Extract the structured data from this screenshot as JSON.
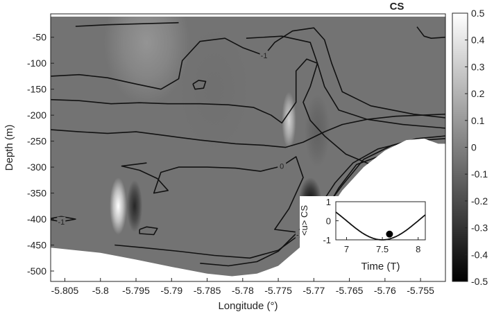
{
  "chart_data": {
    "type": "heatmap",
    "title": "CS",
    "xlabel": "Longitude (°)",
    "ylabel": "Depth (m)",
    "xlim": [
      -5.807,
      -5.7515
    ],
    "ylim": [
      -520,
      -5
    ],
    "x_ticks": [
      "-5.805",
      "-5.8",
      "-5.795",
      "-5.79",
      "-5.785",
      "-5.78",
      "-5.775",
      "-5.77",
      "-5.765",
      "-5.76",
      "-5.755"
    ],
    "x_tick_values": [
      -5.805,
      -5.8,
      -5.795,
      -5.79,
      -5.785,
      -5.78,
      -5.775,
      -5.77,
      -5.765,
      -5.76,
      -5.755
    ],
    "y_ticks": [
      "-50",
      "-100",
      "-150",
      "-200",
      "-250",
      "-300",
      "-350",
      "-400",
      "-450",
      "-500"
    ],
    "y_tick_values": [
      -50,
      -100,
      -150,
      -200,
      -250,
      -300,
      -350,
      -400,
      -450,
      -500
    ],
    "colorbar": {
      "range": [
        -0.5,
        0.5
      ],
      "ticks": [
        "0.5",
        "0.4",
        "0.3",
        "0.2",
        "0.1",
        "0",
        "-0.1",
        "-0.2",
        "-0.3",
        "-0.4",
        "-0.5"
      ],
      "tick_values": [
        0.5,
        0.4,
        0.3,
        0.2,
        0.1,
        0,
        -0.1,
        -0.2,
        -0.3,
        -0.4,
        -0.5
      ],
      "colormap": "gray",
      "low_color": "#000000",
      "high_color": "#ffffff"
    },
    "background_value": -0.05,
    "bottom_boundary": [
      [
        -5.807,
        -455
      ],
      [
        -5.8,
        -465
      ],
      [
        -5.795,
        -478
      ],
      [
        -5.79,
        -492
      ],
      [
        -5.785,
        -505
      ],
      [
        -5.7815,
        -510
      ],
      [
        -5.778,
        -505
      ],
      [
        -5.775,
        -490
      ],
      [
        -5.772,
        -455
      ],
      [
        -5.769,
        -405
      ],
      [
        -5.766,
        -345
      ],
      [
        -5.763,
        -300
      ],
      [
        -5.76,
        -268
      ],
      [
        -5.757,
        -248
      ],
      [
        -5.7545,
        -245
      ],
      [
        -5.7525,
        -255
      ],
      [
        -5.7515,
        -255
      ]
    ],
    "features": [
      {
        "x": -5.7975,
        "y": -375,
        "value": 0.5,
        "sx": 0.0012,
        "sy": 55
      },
      {
        "x": -5.7952,
        "y": -375,
        "value": -0.35,
        "sx": 0.0011,
        "sy": 50
      },
      {
        "x": -5.7735,
        "y": -210,
        "value": 0.32,
        "sx": 0.001,
        "sy": 55
      },
      {
        "x": -5.7705,
        "y": -365,
        "value": -0.45,
        "sx": 0.0016,
        "sy": 45
      },
      {
        "x": -5.7695,
        "y": -230,
        "value": -0.12,
        "sx": 0.0018,
        "sy": 70
      },
      {
        "x": -5.7935,
        "y": -60,
        "value": 0.08,
        "sx": 0.006,
        "sy": 120
      },
      {
        "x": -5.784,
        "y": -150,
        "value": -0.06,
        "sx": 0.005,
        "sy": 120
      }
    ],
    "contours": [
      {
        "level": "-1",
        "points": [
          [
            -5.807,
            -125
          ],
          [
            -5.803,
            -122
          ],
          [
            -5.799,
            -128
          ],
          [
            -5.795,
            -140
          ],
          [
            -5.7915,
            -150
          ],
          [
            -5.789,
            -130
          ],
          [
            -5.7885,
            -95
          ],
          [
            -5.786,
            -58
          ],
          [
            -5.7825,
            -52
          ],
          [
            -5.78,
            -70
          ],
          [
            -5.777,
            -85
          ],
          [
            -5.7755,
            -60
          ],
          [
            -5.773,
            -38
          ],
          [
            -5.77,
            -32
          ],
          [
            -5.7685,
            -55
          ],
          [
            -5.7675,
            -100
          ],
          [
            -5.766,
            -155
          ],
          [
            -5.762,
            -182
          ],
          [
            -5.756,
            -198
          ],
          [
            -5.7515,
            -205
          ]
        ]
      },
      {
        "level": "",
        "points": [
          [
            -5.807,
            -170
          ],
          [
            -5.803,
            -172
          ],
          [
            -5.7985,
            -178
          ],
          [
            -5.7945,
            -176
          ],
          [
            -5.7905,
            -178
          ],
          [
            -5.786,
            -178
          ],
          [
            -5.782,
            -180
          ],
          [
            -5.7785,
            -185
          ],
          [
            -5.776,
            -200
          ],
          [
            -5.7745,
            -215
          ],
          [
            -5.7725,
            -175
          ],
          [
            -5.7725,
            -115
          ],
          [
            -5.771,
            -92
          ],
          [
            -5.7695,
            -100
          ],
          [
            -5.7685,
            -145
          ],
          [
            -5.7665,
            -190
          ],
          [
            -5.7625,
            -208
          ],
          [
            -5.7575,
            -218
          ],
          [
            -5.7515,
            -225
          ]
        ]
      },
      {
        "level": "",
        "points": [
          [
            -5.807,
            -228
          ],
          [
            -5.803,
            -232
          ],
          [
            -5.799,
            -235
          ],
          [
            -5.795,
            -232
          ],
          [
            -5.7905,
            -240
          ],
          [
            -5.786,
            -248
          ],
          [
            -5.781,
            -255
          ],
          [
            -5.777,
            -258
          ],
          [
            -5.774,
            -262
          ],
          [
            -5.7715,
            -252
          ],
          [
            -5.7685,
            -232
          ],
          [
            -5.766,
            -218
          ],
          [
            -5.7625,
            -208
          ],
          [
            -5.7585,
            -202
          ],
          [
            -5.7515,
            -198
          ]
        ]
      },
      {
        "level": "0",
        "points": [
          [
            -5.7935,
            -292
          ],
          [
            -5.797,
            -298
          ],
          [
            -5.7945,
            -306
          ],
          [
            -5.792,
            -322
          ],
          [
            -5.7905,
            -345
          ],
          [
            -5.7925,
            -350
          ],
          [
            -5.7915,
            -310
          ],
          [
            -5.789,
            -300
          ],
          [
            -5.785,
            -300
          ],
          [
            -5.781,
            -302
          ],
          [
            -5.7775,
            -308
          ],
          [
            -5.7745,
            -298
          ],
          [
            -5.7725,
            -280
          ],
          [
            -5.7715,
            -320
          ],
          [
            -5.7735,
            -380
          ],
          [
            -5.7755,
            -420
          ],
          [
            -5.7725,
            -425
          ],
          [
            -5.769,
            -398
          ],
          [
            -5.7665,
            -340
          ],
          [
            -5.764,
            -295
          ],
          [
            -5.759,
            -270
          ],
          [
            -5.753,
            -258
          ]
        ]
      },
      {
        "level": "-1",
        "points": [
          [
            -5.8055,
            -395
          ],
          [
            -5.8035,
            -400
          ],
          [
            -5.8055,
            -405
          ],
          [
            -5.8075,
            -400
          ],
          [
            -5.8055,
            -395
          ]
        ]
      },
      {
        "level": "",
        "points": [
          [
            -5.7945,
            -420
          ],
          [
            -5.7935,
            -415
          ],
          [
            -5.792,
            -418
          ],
          [
            -5.7925,
            -430
          ],
          [
            -5.7945,
            -428
          ],
          [
            -5.7945,
            -420
          ]
        ]
      },
      {
        "level": "",
        "points": [
          [
            -5.787,
            -140
          ],
          [
            -5.7862,
            -133
          ],
          [
            -5.7852,
            -135
          ],
          [
            -5.7855,
            -148
          ],
          [
            -5.7867,
            -150
          ],
          [
            -5.787,
            -140
          ]
        ]
      },
      {
        "level": "",
        "points": [
          [
            -5.7795,
            -52
          ],
          [
            -5.7745,
            -48
          ],
          [
            -5.7705,
            -60
          ],
          [
            -5.7695,
            -100
          ],
          [
            -5.7705,
            -145
          ],
          [
            -5.7715,
            -175
          ],
          [
            -5.7705,
            -210
          ],
          [
            -5.7685,
            -240
          ],
          [
            -5.7655,
            -275
          ],
          [
            -5.7615,
            -298
          ],
          [
            -5.7565,
            -300
          ],
          [
            -5.7515,
            -296
          ]
        ]
      },
      {
        "level": "-1",
        "points": [
          [
            -5.798,
            -450
          ],
          [
            -5.794,
            -455
          ],
          [
            -5.789,
            -462
          ],
          [
            -5.784,
            -470
          ],
          [
            -5.779,
            -475
          ],
          [
            -5.775,
            -460
          ],
          [
            -5.772,
            -430
          ],
          [
            -5.769,
            -390
          ],
          [
            -5.766,
            -335
          ],
          [
            -5.763,
            -285
          ],
          [
            -5.759,
            -258
          ],
          [
            -5.7555,
            -245
          ],
          [
            -5.7515,
            -240
          ]
        ]
      },
      {
        "level": "0",
        "points": [
          [
            -5.786,
            -485
          ],
          [
            -5.782,
            -490
          ],
          [
            -5.778,
            -482
          ],
          [
            -5.775,
            -462
          ],
          [
            -5.7725,
            -428
          ],
          [
            -5.7695,
            -382
          ],
          [
            -5.767,
            -330
          ],
          [
            -5.7645,
            -292
          ],
          [
            -5.761,
            -265
          ],
          [
            -5.7565,
            -250
          ],
          [
            -5.7515,
            -245
          ]
        ]
      },
      {
        "level": "",
        "points": [
          [
            -5.8035,
            -29
          ],
          [
            -5.799,
            -26
          ],
          [
            -5.794,
            -24
          ],
          [
            -5.789,
            -22
          ]
        ]
      },
      {
        "level": "",
        "points": [
          [
            -5.7555,
            -30
          ],
          [
            -5.7545,
            -48
          ],
          [
            -5.7535,
            -52
          ],
          [
            -5.7515,
            -50
          ]
        ]
      }
    ],
    "inset": {
      "type": "line",
      "xlabel": "Time (T)",
      "ylabel": "<u> CS",
      "xlim": [
        6.85,
        8.1
      ],
      "ylim": [
        -1,
        1
      ],
      "x_ticks": [
        "7",
        "7.5",
        "8"
      ],
      "x_tick_values": [
        7,
        7.5,
        8
      ],
      "y_ticks": [
        "1",
        "0",
        "-1"
      ],
      "y_tick_values": [
        1,
        0,
        -1
      ],
      "series": [
        {
          "function": "cos",
          "period": 2,
          "phase_time": 6.5
        }
      ],
      "marker": {
        "x": 7.6,
        "y": -0.7
      }
    }
  }
}
